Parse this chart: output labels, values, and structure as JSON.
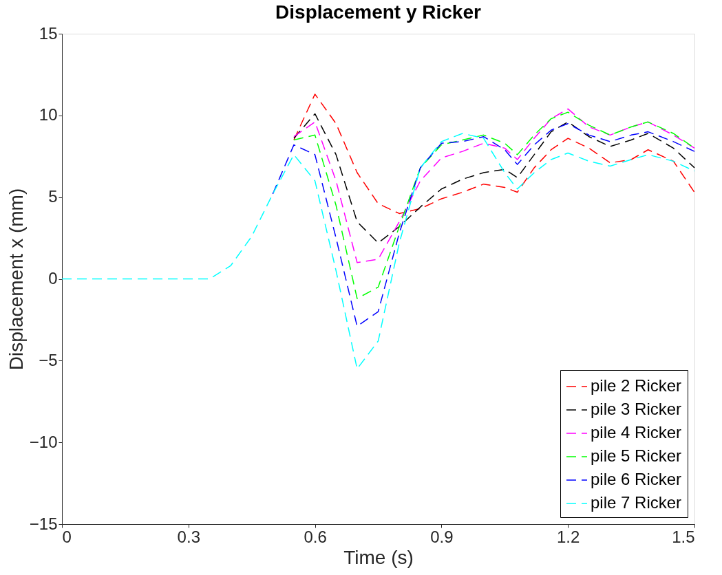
{
  "chart_data": {
    "type": "line",
    "title": "Displacement y Ricker",
    "xlabel": "Time (s)",
    "ylabel": "Displacement x (mm)",
    "xlim": [
      0,
      1.5
    ],
    "xticks": [
      0,
      0.3,
      0.6,
      0.9,
      1.2,
      1.5
    ],
    "ylim": [
      -15,
      15
    ],
    "yticks": [
      -15,
      -10,
      -5,
      0,
      5,
      10,
      15
    ],
    "x": [
      0,
      0.35,
      0.4,
      0.45,
      0.5,
      0.55,
      0.6,
      0.65,
      0.7,
      0.75,
      0.8,
      0.85,
      0.9,
      0.95,
      1.0,
      1.05,
      1.08,
      1.12,
      1.16,
      1.2,
      1.25,
      1.3,
      1.35,
      1.39,
      1.45,
      1.5
    ],
    "grid": false,
    "legend": "bottom right",
    "line_style": "dashed",
    "marker": "none",
    "series": [
      {
        "name": "pile 2 Ricker",
        "color": "#ff0000",
        "values": [
          null,
          null,
          null,
          null,
          null,
          8.5,
          11.3,
          9.5,
          6.5,
          4.6,
          4.0,
          4.3,
          4.9,
          5.3,
          5.8,
          5.6,
          5.3,
          6.8,
          7.9,
          8.6,
          8.0,
          7.1,
          7.3,
          7.9,
          7.2,
          5.3
        ]
      },
      {
        "name": "pile 3 Ricker",
        "color": "#000000",
        "values": [
          null,
          null,
          null,
          null,
          null,
          8.6,
          10.1,
          7.6,
          3.5,
          2.2,
          3.2,
          4.4,
          5.5,
          6.1,
          6.5,
          6.7,
          6.2,
          7.6,
          9.0,
          9.6,
          8.7,
          8.1,
          8.5,
          8.9,
          8.0,
          6.8
        ]
      },
      {
        "name": "pile 4 Ricker",
        "color": "#ff00ff",
        "values": [
          null,
          null,
          null,
          null,
          null,
          8.7,
          9.6,
          6.0,
          1.0,
          1.2,
          3.5,
          6.0,
          7.4,
          7.8,
          8.3,
          8.0,
          7.3,
          8.6,
          9.8,
          10.4,
          9.3,
          8.8,
          9.3,
          9.6,
          8.8,
          8.0
        ]
      },
      {
        "name": "pile 5 Ricker",
        "color": "#00ff00",
        "values": [
          null,
          null,
          null,
          null,
          null,
          8.5,
          8.8,
          4.5,
          -1.2,
          -0.5,
          3.2,
          6.8,
          8.2,
          8.5,
          8.8,
          8.3,
          7.6,
          8.8,
          9.8,
          10.2,
          9.4,
          8.8,
          9.3,
          9.6,
          8.9,
          8.0
        ]
      },
      {
        "name": "pile 6 Ricker",
        "color": "#0000ff",
        "values": [
          null,
          null,
          null,
          null,
          5.2,
          8.2,
          7.6,
          2.5,
          -2.9,
          -2.0,
          2.8,
          6.8,
          8.3,
          8.4,
          8.7,
          7.9,
          7.0,
          8.2,
          9.1,
          9.5,
          8.8,
          8.4,
          8.8,
          9.0,
          8.4,
          7.8
        ]
      },
      {
        "name": "pile 7 Ricker",
        "color": "#00ffff",
        "values": [
          0,
          0,
          0.8,
          2.6,
          5.2,
          7.6,
          6.0,
          0.5,
          -5.5,
          -3.8,
          2.2,
          6.8,
          8.4,
          8.9,
          8.6,
          6.5,
          5.5,
          6.5,
          7.3,
          7.7,
          7.2,
          6.9,
          7.3,
          7.6,
          7.2,
          6.6
        ]
      }
    ]
  }
}
